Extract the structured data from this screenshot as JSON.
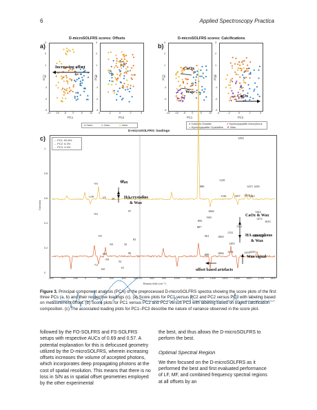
{
  "header": {
    "page_number": "6",
    "journal": "Applied Spectroscopy Practica"
  },
  "panel_a": {
    "label": "a)",
    "title": "D-microSOLFRS scores: Offsets",
    "pc1_x_ticks": [
      "-15",
      "-10",
      "-5",
      "0",
      "5",
      "10"
    ],
    "pc_y_ticks": [
      "3",
      "2",
      "1",
      "0",
      "-1",
      "-2",
      "-3"
    ],
    "pc2_x_ticks": [
      "-4",
      "-2",
      "0",
      "2",
      "4"
    ],
    "xlabel_left": "PC1",
    "ylabel_left": "PC2",
    "xlabel_right": "PC2",
    "ylabel_right": "PC3",
    "arrow_text": "Increasing offset",
    "legend": [
      "0mm",
      "2mm",
      "4mm"
    ],
    "colors": [
      "#2c7bb6",
      "#e8731a",
      "#e8b22b"
    ]
  },
  "panel_b": {
    "label": "b)",
    "title": "D-microSOLFRS scores: Calcifications",
    "pc1_x_ticks": [
      "-15",
      "-10",
      "-5",
      "0",
      "5",
      "10"
    ],
    "pc2_x_ticks": [
      "-4",
      "-2",
      "0",
      "2",
      "4"
    ],
    "xlabel_left": "PC1",
    "ylabel_left": "PC2",
    "xlabel_right": "PC2",
    "ylabel_right": "PC3",
    "annotations": [
      "CaOx",
      "Wax",
      "CaOx"
    ],
    "legend": [
      "Calcium Oxalate",
      "Hydroxyapatite Amorphous",
      "Hydroxyapatite Crystalline",
      "Wax"
    ],
    "colors": [
      "#2c7bb6",
      "#e8731a",
      "#e8b22b",
      "#7b2fa8"
    ]
  },
  "panel_c": {
    "label": "c)",
    "title": "D-microSOLFRS: loadings",
    "legend": [
      "PC1: 83.6%",
      "PC2: 6.3%",
      "PC3: 3.3%"
    ],
    "colors": [
      "#2c7bb6",
      "#d9541a",
      "#e8b22b"
    ],
    "y_ticks": [
      "1",
      "0.8",
      "0.6",
      "0.4",
      "0.2",
      "0"
    ],
    "ylabel": "Intensity",
    "x_ticks_left": [
      "-300",
      "-200",
      "-100",
      "0",
      "100",
      "200",
      "300",
      "400"
    ],
    "x_ticks_right": [
      "700",
      "800",
      "900",
      "1000",
      "1100",
      "1200",
      "1300",
      "1400",
      "1500",
      "1600",
      "1700",
      "1800"
    ],
    "xlabel": "Raman shift (cm⁻¹)",
    "annotations": {
      "wax": "Wax",
      "ha_crystaline": "HA crystaline",
      "ha_crystaline_wax": "& Wax",
      "caox_wax": "CaOx & Wax",
      "ha_amorphous": "HA amorphous",
      "ha_amorphous_wax": "& Wax",
      "wax_signal": "Wax signal",
      "offset_artefacts": "offset based artefacts"
    },
    "peaks": [
      "1294",
      "-93",
      "88",
      "-139",
      "-25",
      "50",
      "143",
      "886",
      "1129",
      "1415",
      "1436",
      "1136",
      "1297",
      "1428",
      "1442",
      "-83",
      "97",
      "1066",
      "895",
      "-963",
      "887",
      "961",
      "1060",
      "1131",
      "1295",
      "1442",
      "1472",
      "1635",
      "1419",
      "1438",
      "-95",
      "83",
      "1151",
      "-30",
      "32",
      "-88",
      "-58",
      "90",
      "-72",
      "52",
      "61",
      "-60",
      "889",
      "1066",
      "1133",
      "1418",
      "1439"
    ]
  },
  "caption": {
    "label": "Figure 3.",
    "text": "Principal component analysis (PCA) of the preprocessed D-microSOLFRS spectra showing the score plots of the first three PCs (a, b) and their respective loadings (c). (a) Score plots for PC1 versus PC2 and PC2 versus PC3 with labeling based on measurement offset. (b) Score plots for PC1 versus PC2 and PC2 versus PC3 with labeling based on buried calcification composition. (c) The associated loading plots for PC1–PC3 describe the nature of variance observed in the score plot."
  },
  "body": {
    "left_col": "followed by the FO-SOLFRS and FS-SOLFRS setups with respective AUCs of 0.69 and 0.57. A potential explanation for this is defocused geometry utilized by the D-microSOLFRS, wherein increasing offsets increases the volume of accepted photons, which incorporates deep propagating photons at the cost of spatial resolution. This means that there is no loss in S/N as in spatial offset geometries employed by the other experimental",
    "right_col_top": "the best, and thus allows the D-microSOLFRS to perform the best.",
    "section_title": "Optimal Spectral Region",
    "right_col_body": "We then focused on the D-microSOLFRS as it performed the best and first evaluated performance of LF, MF, and combined frequency spectral regions at all offsets by an"
  }
}
